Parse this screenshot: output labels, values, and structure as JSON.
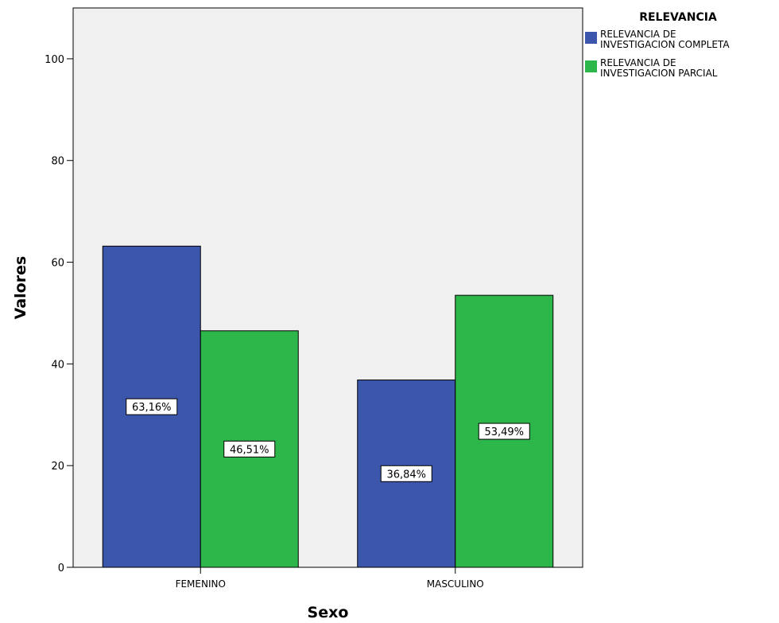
{
  "chart_data": {
    "type": "bar",
    "xlabel": "Sexo",
    "ylabel": "Valores",
    "ylim": [
      0,
      110
    ],
    "yticks": [
      0,
      20,
      40,
      60,
      80,
      100
    ],
    "grid": false,
    "categories": [
      "FEMENINO",
      "MASCULINO"
    ],
    "legend": {
      "title": "RELEVANCIA",
      "placement": "right"
    },
    "series": [
      {
        "name": "RELEVANCIA DE INVESTIGACION COMPLETA",
        "name_lines": [
          "RELEVANCIA DE",
          "INVESTIGACION COMPLETA"
        ],
        "color": "#3c56ab",
        "values": [
          63.16,
          36.84
        ],
        "labels": [
          "63,16%",
          "36,84%"
        ]
      },
      {
        "name": "RELEVANCIA DE INVESTIGACION PARCIAL",
        "name_lines": [
          "RELEVANCIA DE",
          "INVESTIGACION PARCIAL"
        ],
        "color": "#2db64a",
        "values": [
          46.51,
          53.49
        ],
        "labels": [
          "46,51%",
          "53,49%"
        ]
      }
    ],
    "plot_background": "#f0f0f0"
  }
}
